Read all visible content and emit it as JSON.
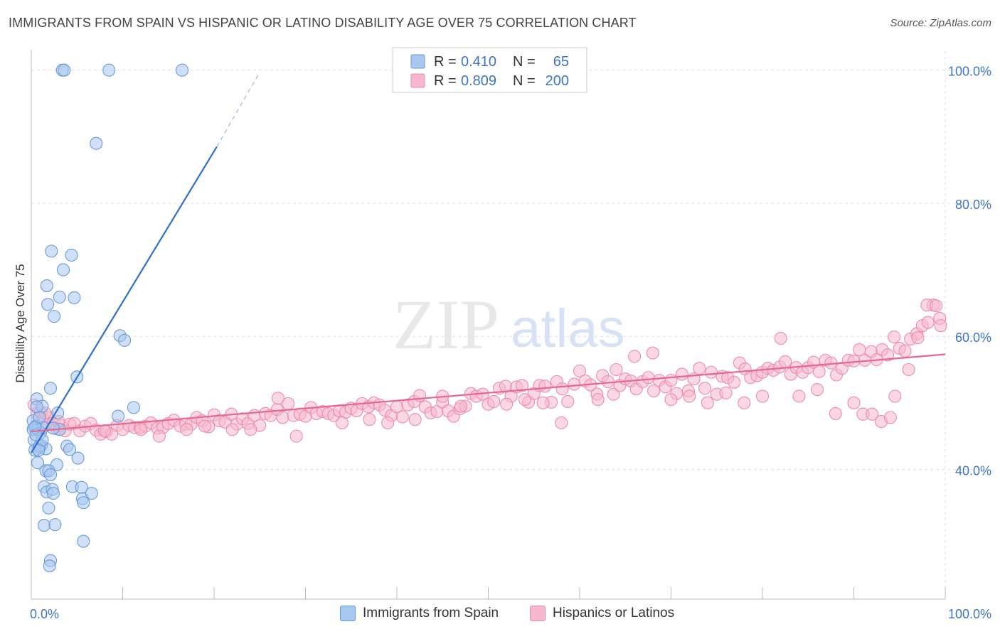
{
  "title": "IMMIGRANTS FROM SPAIN VS HISPANIC OR LATINO DISABILITY AGE OVER 75 CORRELATION CHART",
  "source": "Source: ZipAtlas.com",
  "watermark": {
    "zip": "ZIP",
    "atlas": "atlas"
  },
  "colors": {
    "blue_fill": "#a9c8f0",
    "blue_stroke": "#6a9ad8",
    "blue_line": "#2f6fce",
    "pink_fill": "#f6b8cc",
    "pink_stroke": "#ec8cab",
    "pink_line": "#e8668f",
    "value_text": "#3d73c8",
    "grid": "#dddddd"
  },
  "legend": {
    "r_label": "R =",
    "n_label": "N =",
    "series": [
      {
        "swatch": "blue",
        "r": "0.410",
        "n": "65"
      },
      {
        "swatch": "pink",
        "r": "0.809",
        "n": "200"
      }
    ]
  },
  "bottom_legend": [
    "Immigrants from Spain",
    "Hispanics or Latinos"
  ],
  "chart_data": {
    "type": "scatter",
    "title": "IMMIGRANTS FROM SPAIN VS HISPANIC OR LATINO DISABILITY AGE OVER 75 CORRELATION CHART",
    "xlabel": "",
    "ylabel": "Disability Age Over 75",
    "xlim": [
      0,
      100
    ],
    "ylim": [
      20.5,
      102
    ],
    "x_tick_labels": [
      "0.0%",
      "100.0%"
    ],
    "y_ticks": [
      40,
      60,
      80,
      100
    ],
    "y_tick_labels": [
      "40.0%",
      "60.0%",
      "80.0%",
      "100.0%"
    ],
    "grid": true,
    "legend_position": "top-center",
    "series": [
      {
        "name": "Immigrants from Spain",
        "color": "blue",
        "trend": {
          "x0": 0.0,
          "y0": 42.5,
          "x1": 20.3,
          "y1": 88.5,
          "dash_to_x": 25.0,
          "dash_to_y": 99.7
        },
        "points": [
          [
            3.4,
            100.0
          ],
          [
            3.6,
            100.0
          ],
          [
            8.5,
            100.0
          ],
          [
            16.5,
            100.0
          ],
          [
            7.1,
            89.0
          ],
          [
            2.2,
            72.8
          ],
          [
            3.5,
            70.0
          ],
          [
            4.4,
            72.2
          ],
          [
            1.7,
            67.6
          ],
          [
            3.1,
            65.9
          ],
          [
            4.7,
            65.8
          ],
          [
            1.8,
            64.8
          ],
          [
            2.5,
            63.0
          ],
          [
            9.7,
            60.1
          ],
          [
            10.2,
            59.4
          ],
          [
            5.0,
            53.9
          ],
          [
            11.2,
            49.3
          ],
          [
            0.6,
            50.6
          ],
          [
            1.2,
            49.5
          ],
          [
            2.1,
            52.2
          ],
          [
            0.2,
            47.3
          ],
          [
            0.5,
            46.5
          ],
          [
            0.7,
            46.0
          ],
          [
            1.0,
            45.5
          ],
          [
            1.3,
            46.3
          ],
          [
            0.3,
            44.4
          ],
          [
            0.8,
            43.2
          ],
          [
            1.1,
            43.6
          ],
          [
            1.6,
            43.1
          ],
          [
            0.4,
            42.9
          ],
          [
            2.9,
            48.5
          ],
          [
            3.1,
            46.0
          ],
          [
            9.5,
            48.0
          ],
          [
            0.6,
            49.4
          ],
          [
            0.9,
            47.8
          ],
          [
            3.9,
            43.5
          ],
          [
            4.2,
            43.0
          ],
          [
            5.1,
            41.7
          ],
          [
            2.8,
            40.7
          ],
          [
            0.7,
            41.0
          ],
          [
            1.6,
            39.8
          ],
          [
            1.9,
            39.8
          ],
          [
            2.1,
            39.2
          ],
          [
            1.4,
            37.4
          ],
          [
            1.7,
            36.6
          ],
          [
            2.3,
            37.0
          ],
          [
            2.4,
            36.4
          ],
          [
            4.5,
            37.4
          ],
          [
            5.5,
            37.3
          ],
          [
            5.6,
            35.6
          ],
          [
            6.6,
            36.4
          ],
          [
            5.7,
            35.0
          ],
          [
            1.9,
            34.2
          ],
          [
            1.4,
            31.6
          ],
          [
            2.6,
            31.7
          ],
          [
            5.7,
            29.2
          ],
          [
            2.1,
            26.3
          ],
          [
            2.0,
            25.5
          ],
          [
            0.2,
            46.0
          ],
          [
            0.4,
            46.3
          ],
          [
            0.9,
            43.5
          ],
          [
            1.2,
            44.4
          ],
          [
            0.5,
            45.2
          ],
          [
            0.8,
            42.9
          ],
          [
            2.4,
            46.2
          ]
        ]
      },
      {
        "name": "Hispanics or Latinos",
        "color": "pink",
        "trend": {
          "x0": 0.0,
          "y0": 45.7,
          "x1": 100.0,
          "y1": 57.3
        },
        "points": [
          [
            0.3,
            49.7
          ],
          [
            0.6,
            48.4
          ],
          [
            1.0,
            48.6
          ],
          [
            1.3,
            47.6
          ],
          [
            1.6,
            46.7
          ],
          [
            2.0,
            47.8
          ],
          [
            2.4,
            47.0
          ],
          [
            2.8,
            46.1
          ],
          [
            3.3,
            46.6
          ],
          [
            3.7,
            45.8
          ],
          [
            4.2,
            46.8
          ],
          [
            4.7,
            46.9
          ],
          [
            5.3,
            45.8
          ],
          [
            5.9,
            46.5
          ],
          [
            6.5,
            46.9
          ],
          [
            7.1,
            45.9
          ],
          [
            7.6,
            45.3
          ],
          [
            8.2,
            45.7
          ],
          [
            8.8,
            45.3
          ],
          [
            9.4,
            46.6
          ],
          [
            10.0,
            46.0
          ],
          [
            10.7,
            46.6
          ],
          [
            11.3,
            46.3
          ],
          [
            11.9,
            46.3
          ],
          [
            12.5,
            46.5
          ],
          [
            13.1,
            47.0
          ],
          [
            13.8,
            46.2
          ],
          [
            14.4,
            46.3
          ],
          [
            15.0,
            46.9
          ],
          [
            15.6,
            47.4
          ],
          [
            16.3,
            46.5
          ],
          [
            16.9,
            46.8
          ],
          [
            17.5,
            46.8
          ],
          [
            18.1,
            47.8
          ],
          [
            18.7,
            47.3
          ],
          [
            19.4,
            46.4
          ],
          [
            20.0,
            48.2
          ],
          [
            20.6,
            47.3
          ],
          [
            21.2,
            47.1
          ],
          [
            21.9,
            48.3
          ],
          [
            22.5,
            46.8
          ],
          [
            23.1,
            47.6
          ],
          [
            23.7,
            46.9
          ],
          [
            24.4,
            48.1
          ],
          [
            25.0,
            46.6
          ],
          [
            25.6,
            48.4
          ],
          [
            26.2,
            48.1
          ],
          [
            26.9,
            49.0
          ],
          [
            27.5,
            47.8
          ],
          [
            28.1,
            49.9
          ],
          [
            28.7,
            48.1
          ],
          [
            29.4,
            48.3
          ],
          [
            30.0,
            48.0
          ],
          [
            30.6,
            49.3
          ],
          [
            31.2,
            48.4
          ],
          [
            31.9,
            48.7
          ],
          [
            32.5,
            48.4
          ],
          [
            33.1,
            48.1
          ],
          [
            33.7,
            48.8
          ],
          [
            34.4,
            48.6
          ],
          [
            35.0,
            49.2
          ],
          [
            35.6,
            48.8
          ],
          [
            36.2,
            49.9
          ],
          [
            36.9,
            49.4
          ],
          [
            37.5,
            50.0
          ],
          [
            38.1,
            49.7
          ],
          [
            38.7,
            48.9
          ],
          [
            39.4,
            48.1
          ],
          [
            40.0,
            49.4
          ],
          [
            40.6,
            47.9
          ],
          [
            41.2,
            49.7
          ],
          [
            41.9,
            50.2
          ],
          [
            42.5,
            51.1
          ],
          [
            43.1,
            49.4
          ],
          [
            43.7,
            48.5
          ],
          [
            44.4,
            48.7
          ],
          [
            45.0,
            50.1
          ],
          [
            45.6,
            48.8
          ],
          [
            46.2,
            48.0
          ],
          [
            46.9,
            49.1
          ],
          [
            47.5,
            49.5
          ],
          [
            48.1,
            51.4
          ],
          [
            48.7,
            51.0
          ],
          [
            49.4,
            51.3
          ],
          [
            50.0,
            49.8
          ],
          [
            50.6,
            50.2
          ],
          [
            51.2,
            52.2
          ],
          [
            51.9,
            52.5
          ],
          [
            52.5,
            51.0
          ],
          [
            53.1,
            52.4
          ],
          [
            53.7,
            52.6
          ],
          [
            54.4,
            50.1
          ],
          [
            55.0,
            51.4
          ],
          [
            55.6,
            52.6
          ],
          [
            56.2,
            52.5
          ],
          [
            56.9,
            50.1
          ],
          [
            57.5,
            53.2
          ],
          [
            58.1,
            52.1
          ],
          [
            58.7,
            50.2
          ],
          [
            59.4,
            52.8
          ],
          [
            60.0,
            54.8
          ],
          [
            60.6,
            53.3
          ],
          [
            61.2,
            52.7
          ],
          [
            61.9,
            51.3
          ],
          [
            62.5,
            54.1
          ],
          [
            63.1,
            53.2
          ],
          [
            63.7,
            51.3
          ],
          [
            64.4,
            52.6
          ],
          [
            65.0,
            53.6
          ],
          [
            65.6,
            53.3
          ],
          [
            66.2,
            52.1
          ],
          [
            66.9,
            53.2
          ],
          [
            67.5,
            53.8
          ],
          [
            68.1,
            51.8
          ],
          [
            68.7,
            53.4
          ],
          [
            69.4,
            52.4
          ],
          [
            70.0,
            53.4
          ],
          [
            70.6,
            51.4
          ],
          [
            71.2,
            54.3
          ],
          [
            71.9,
            51.8
          ],
          [
            72.5,
            53.6
          ],
          [
            73.1,
            55.2
          ],
          [
            73.7,
            52.2
          ],
          [
            74.4,
            54.6
          ],
          [
            75.0,
            51.3
          ],
          [
            75.6,
            54.0
          ],
          [
            76.2,
            53.8
          ],
          [
            76.9,
            53.1
          ],
          [
            77.5,
            56.0
          ],
          [
            78.1,
            55.1
          ],
          [
            78.7,
            53.8
          ],
          [
            79.4,
            54.1
          ],
          [
            80.0,
            54.6
          ],
          [
            80.6,
            55.2
          ],
          [
            81.2,
            54.9
          ],
          [
            81.9,
            55.4
          ],
          [
            82.5,
            56.2
          ],
          [
            83.1,
            54.3
          ],
          [
            83.7,
            55.3
          ],
          [
            84.4,
            54.6
          ],
          [
            85.0,
            55.3
          ],
          [
            85.6,
            56.1
          ],
          [
            86.2,
            54.7
          ],
          [
            86.9,
            56.4
          ],
          [
            87.5,
            56.0
          ],
          [
            88.1,
            54.2
          ],
          [
            88.7,
            55.2
          ],
          [
            89.4,
            56.4
          ],
          [
            90.0,
            56.3
          ],
          [
            90.6,
            58.0
          ],
          [
            91.2,
            56.4
          ],
          [
            91.9,
            57.7
          ],
          [
            92.5,
            56.5
          ],
          [
            93.1,
            58.0
          ],
          [
            93.7,
            57.2
          ],
          [
            94.4,
            59.9
          ],
          [
            95.0,
            58.2
          ],
          [
            95.6,
            57.8
          ],
          [
            96.2,
            59.6
          ],
          [
            96.9,
            60.4
          ],
          [
            97.5,
            61.6
          ],
          [
            98.1,
            62.1
          ],
          [
            98.7,
            64.7
          ],
          [
            99.4,
            62.7
          ],
          [
            1.5,
            48.5
          ],
          [
            3.0,
            47.2
          ],
          [
            8.0,
            45.8
          ],
          [
            12.0,
            46.0
          ],
          [
            14.0,
            45.0
          ],
          [
            17.0,
            46.0
          ],
          [
            19.0,
            46.5
          ],
          [
            22.0,
            46.0
          ],
          [
            24.0,
            46.0
          ],
          [
            27.0,
            50.7
          ],
          [
            29.0,
            45.0
          ],
          [
            34.0,
            47.0
          ],
          [
            37.0,
            47.5
          ],
          [
            39.0,
            47.0
          ],
          [
            42.0,
            47.5
          ],
          [
            45.0,
            51.0
          ],
          [
            47.0,
            49.5
          ],
          [
            52.0,
            49.8
          ],
          [
            54.0,
            50.5
          ],
          [
            56.0,
            50.0
          ],
          [
            58.0,
            47.0
          ],
          [
            62.0,
            50.5
          ],
          [
            64.0,
            55.0
          ],
          [
            66.0,
            57.0
          ],
          [
            68.0,
            57.5
          ],
          [
            70.0,
            50.5
          ],
          [
            72.0,
            51.0
          ],
          [
            74.0,
            50.0
          ],
          [
            76.0,
            51.5
          ],
          [
            78.0,
            50.0
          ],
          [
            80.0,
            51.0
          ],
          [
            82.0,
            59.7
          ],
          [
            84.0,
            51.0
          ],
          [
            86.0,
            52.0
          ],
          [
            88.0,
            48.4
          ],
          [
            90.0,
            50.0
          ],
          [
            91.0,
            48.3
          ],
          [
            92.0,
            48.3
          ],
          [
            93.0,
            47.2
          ],
          [
            94.0,
            47.8
          ],
          [
            96.0,
            55.0
          ],
          [
            97.0,
            59.8
          ],
          [
            98.0,
            64.7
          ],
          [
            99.0,
            64.6
          ],
          [
            99.5,
            61.6
          ],
          [
            94.5,
            51.0
          ]
        ]
      }
    ]
  }
}
